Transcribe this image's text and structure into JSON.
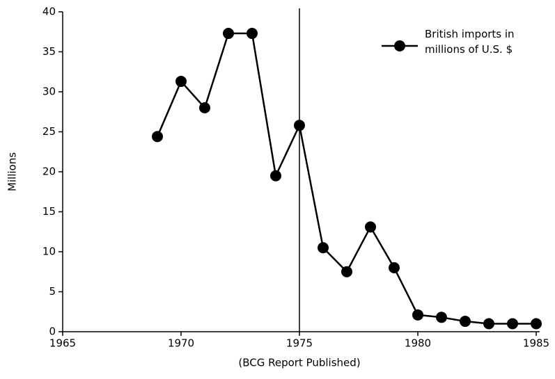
{
  "chart_data": {
    "type": "line",
    "y_label": "Millions",
    "annotation": {
      "text": "(BCG Report Published)",
      "x": 1975
    },
    "x": [
      1969,
      1970,
      1971,
      1972,
      1973,
      1974,
      1975,
      1976,
      1977,
      1978,
      1979,
      1980,
      1981,
      1982,
      1983,
      1984,
      1985
    ],
    "series": [
      {
        "name": "British imports in millions of U.S. $",
        "color": "#000000",
        "values": [
          24.4,
          31.3,
          28.0,
          37.3,
          37.3,
          19.5,
          25.8,
          10.5,
          7.5,
          13.1,
          8.0,
          2.1,
          1.8,
          1.3,
          1.0,
          1.0,
          1.0
        ]
      }
    ],
    "xlim": [
      1965,
      1985
    ],
    "xticks": [
      1965,
      1970,
      1975,
      1980,
      1985
    ],
    "ylim": [
      0,
      40
    ],
    "yticks": [
      0,
      5,
      10,
      15,
      20,
      25,
      30,
      35,
      40
    ],
    "grid": false,
    "legend": "top-right"
  }
}
